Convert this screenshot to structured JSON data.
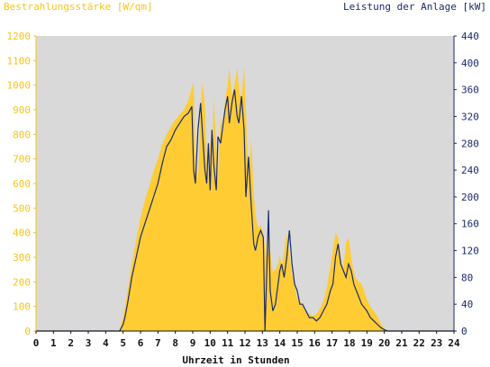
{
  "header": {
    "left_title": "Bestrahlungsstärke [W/qm]",
    "right_title": "Leistung der Anlage [kW]"
  },
  "chart_data": {
    "type": "area",
    "title": "",
    "xlabel": "Uhrzeit in Stunden",
    "ylabel_left": "Bestrahlungsstärke [W/qm]",
    "ylabel_right": "Leistung der Anlage [kW]",
    "xlim": [
      0,
      24
    ],
    "ylim_left": [
      0,
      1200
    ],
    "ylim_right": [
      0,
      440
    ],
    "x_ticks": [
      "0",
      "1",
      "2",
      "3",
      "4",
      "5",
      "6",
      "7",
      "8",
      "9",
      "10",
      "11",
      "12",
      "13",
      "14",
      "15",
      "16",
      "17",
      "18",
      "19",
      "20",
      "21",
      "22",
      "23",
      "24"
    ],
    "y_ticks_left": [
      "0",
      "100",
      "200",
      "300",
      "400",
      "500",
      "600",
      "700",
      "800",
      "900",
      "1000",
      "1100",
      "1200"
    ],
    "y_ticks_right": [
      "0",
      "40",
      "80",
      "120",
      "160",
      "200",
      "240",
      "280",
      "320",
      "360",
      "400",
      "440"
    ],
    "grid": false,
    "colors": {
      "plot_background": "#d9d9d9",
      "irradiance_fill": "#ffcc33",
      "power_line": "#1a2a6c",
      "left_axis_text": "#f5c518",
      "right_axis_text": "#1a2a6c"
    },
    "series": [
      {
        "name": "Bestrahlungsstärke [W/qm]",
        "axis": "left",
        "style": "filled-area",
        "x": [
          0,
          4.8,
          5.0,
          5.25,
          5.5,
          5.75,
          6.0,
          6.25,
          6.5,
          6.75,
          7.0,
          7.25,
          7.5,
          7.75,
          8.0,
          8.25,
          8.5,
          8.75,
          8.95,
          9.05,
          9.15,
          9.3,
          9.45,
          9.55,
          9.7,
          9.8,
          9.9,
          10.0,
          10.1,
          10.2,
          10.35,
          10.45,
          10.6,
          10.75,
          10.85,
          11.0,
          11.1,
          11.25,
          11.4,
          11.55,
          11.65,
          11.8,
          11.95,
          12.05,
          12.2,
          12.35,
          12.5,
          12.6,
          12.75,
          12.9,
          13.05,
          13.2,
          13.35,
          13.45,
          13.6,
          13.75,
          13.9,
          14.0,
          14.1,
          14.25,
          14.4,
          14.55,
          14.7,
          14.85,
          15.0,
          15.15,
          15.3,
          15.5,
          15.7,
          15.9,
          16.1,
          16.3,
          16.5,
          16.7,
          16.9,
          17.05,
          17.2,
          17.35,
          17.5,
          17.65,
          17.8,
          17.95,
          18.1,
          18.25,
          18.4,
          18.55,
          18.7,
          18.85,
          19.0,
          19.2,
          19.4,
          19.6,
          19.8,
          20.0,
          20.2,
          24
        ],
        "y": [
          0,
          0,
          60,
          160,
          270,
          370,
          460,
          530,
          590,
          650,
          700,
          760,
          800,
          830,
          860,
          880,
          900,
          940,
          990,
          1010,
          680,
          620,
          890,
          1010,
          920,
          700,
          620,
          780,
          640,
          950,
          760,
          620,
          870,
          810,
          940,
          1000,
          1070,
          960,
          1000,
          1070,
          990,
          940,
          1080,
          900,
          620,
          780,
          560,
          470,
          420,
          430,
          400,
          300,
          470,
          320,
          240,
          250,
          270,
          310,
          260,
          320,
          400,
          310,
          230,
          190,
          130,
          120,
          110,
          80,
          70,
          60,
          70,
          90,
          120,
          180,
          260,
          330,
          400,
          380,
          300,
          250,
          360,
          380,
          300,
          240,
          210,
          200,
          190,
          160,
          130,
          100,
          80,
          60,
          30,
          10,
          0,
          0
        ]
      },
      {
        "name": "Leistung der Anlage [kW]",
        "axis": "right",
        "style": "line",
        "x": [
          0,
          4.8,
          5.0,
          5.1,
          5.25,
          5.5,
          5.75,
          6.0,
          6.25,
          6.5,
          6.75,
          7.0,
          7.25,
          7.5,
          7.75,
          8.0,
          8.25,
          8.5,
          8.75,
          8.95,
          9.05,
          9.15,
          9.3,
          9.45,
          9.55,
          9.7,
          9.8,
          9.9,
          10.0,
          10.1,
          10.2,
          10.35,
          10.45,
          10.6,
          10.75,
          10.85,
          11.0,
          11.1,
          11.25,
          11.4,
          11.55,
          11.65,
          11.8,
          11.95,
          12.05,
          12.2,
          12.35,
          12.5,
          12.6,
          12.75,
          12.9,
          13.05,
          13.15,
          13.25,
          13.35,
          13.4,
          13.45,
          13.6,
          13.75,
          13.9,
          14.0,
          14.1,
          14.25,
          14.4,
          14.55,
          14.7,
          14.85,
          15.0,
          15.15,
          15.3,
          15.5,
          15.7,
          15.9,
          16.1,
          16.3,
          16.5,
          16.7,
          16.9,
          17.05,
          17.2,
          17.35,
          17.5,
          17.65,
          17.8,
          17.95,
          18.1,
          18.25,
          18.4,
          18.55,
          18.7,
          18.85,
          19.0,
          19.2,
          19.4,
          19.6,
          19.8,
          20.0,
          20.2,
          24
        ],
        "y": [
          0,
          0,
          10,
          20,
          40,
          80,
          110,
          140,
          160,
          180,
          200,
          220,
          250,
          275,
          285,
          300,
          310,
          320,
          325,
          335,
          240,
          220,
          300,
          340,
          300,
          240,
          220,
          280,
          210,
          300,
          250,
          210,
          290,
          280,
          310,
          330,
          350,
          310,
          340,
          360,
          320,
          310,
          350,
          300,
          200,
          260,
          190,
          130,
          120,
          140,
          150,
          140,
          0,
          90,
          180,
          110,
          60,
          30,
          40,
          70,
          90,
          100,
          80,
          110,
          150,
          100,
          70,
          60,
          40,
          40,
          30,
          20,
          20,
          15,
          20,
          30,
          40,
          60,
          70,
          110,
          130,
          100,
          90,
          80,
          100,
          90,
          70,
          60,
          50,
          40,
          35,
          30,
          20,
          15,
          10,
          5,
          2,
          0,
          0
        ]
      }
    ]
  }
}
